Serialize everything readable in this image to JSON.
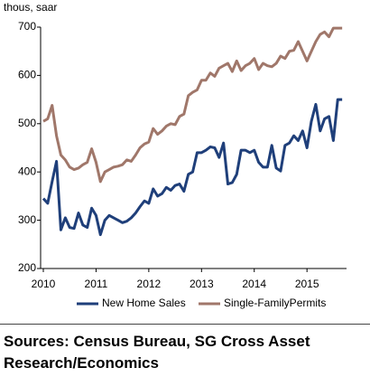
{
  "chart_data": {
    "type": "line",
    "y_label": "thous, saar",
    "x": [
      2010,
      2010.083,
      2010.167,
      2010.25,
      2010.333,
      2010.417,
      2010.5,
      2010.583,
      2010.667,
      2010.75,
      2010.833,
      2010.917,
      2011,
      2011.083,
      2011.167,
      2011.25,
      2011.333,
      2011.417,
      2011.5,
      2011.583,
      2011.667,
      2011.75,
      2011.833,
      2011.917,
      2012,
      2012.083,
      2012.167,
      2012.25,
      2012.333,
      2012.417,
      2012.5,
      2012.583,
      2012.667,
      2012.75,
      2012.833,
      2012.917,
      2013,
      2013.083,
      2013.167,
      2013.25,
      2013.333,
      2013.417,
      2013.5,
      2013.583,
      2013.667,
      2013.75,
      2013.833,
      2013.917,
      2014,
      2014.083,
      2014.167,
      2014.25,
      2014.333,
      2014.417,
      2014.5,
      2014.583,
      2014.667,
      2014.75,
      2014.833,
      2014.917,
      2015,
      2015.083,
      2015.167,
      2015.25,
      2015.333,
      2015.417,
      2015.5,
      2015.583,
      2015.667
    ],
    "series": [
      {
        "name": "New Home Sales",
        "color": "#1f3f7a",
        "values": [
          345,
          335,
          380,
          422,
          280,
          305,
          285,
          283,
          315,
          290,
          285,
          325,
          310,
          270,
          300,
          310,
          305,
          300,
          295,
          298,
          305,
          315,
          328,
          340,
          335,
          365,
          350,
          355,
          368,
          362,
          372,
          375,
          360,
          395,
          400,
          440,
          440,
          445,
          452,
          450,
          430,
          460,
          375,
          378,
          395,
          445,
          445,
          440,
          445,
          420,
          410,
          410,
          455,
          408,
          402,
          455,
          460,
          475,
          465,
          485,
          450,
          505,
          540,
          485,
          510,
          515,
          465,
          550,
          550
        ]
      },
      {
        "name": "Single-FamilyPermits",
        "color": "#a0776a",
        "values": [
          505,
          510,
          538,
          475,
          435,
          425,
          410,
          405,
          408,
          415,
          420,
          448,
          420,
          380,
          400,
          405,
          410,
          412,
          415,
          425,
          422,
          435,
          450,
          458,
          462,
          490,
          478,
          485,
          495,
          500,
          498,
          515,
          520,
          558,
          565,
          570,
          590,
          590,
          605,
          598,
          615,
          620,
          625,
          608,
          630,
          610,
          620,
          625,
          635,
          612,
          625,
          620,
          618,
          625,
          640,
          635,
          650,
          652,
          670,
          650,
          630,
          650,
          670,
          685,
          690,
          680,
          698,
          698,
          698
        ]
      }
    ],
    "xlim": [
      2010,
      2015.75
    ],
    "xticks": [
      2010,
      2011,
      2012,
      2013,
      2014,
      2015
    ],
    "ylim": [
      200,
      700
    ],
    "yticks": [
      200,
      300,
      400,
      500,
      600,
      700
    ],
    "grid": false,
    "legend": "bottom",
    "source": "Sources: Census Bureau, SG Cross Asset Research/Economics"
  }
}
